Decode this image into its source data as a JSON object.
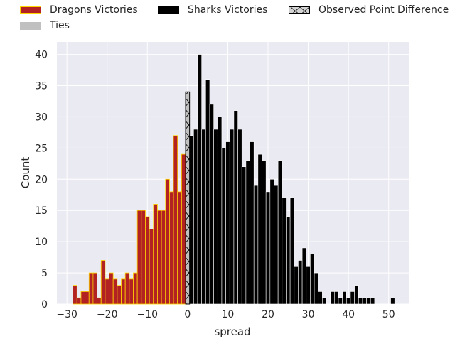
{
  "chart_data": {
    "type": "bar",
    "xlabel": "spread",
    "ylabel": "Count",
    "xlim": [
      -32.5,
      55
    ],
    "ylim": [
      0,
      42
    ],
    "xticks": [
      -30,
      -20,
      -10,
      0,
      10,
      20,
      30,
      40,
      50
    ],
    "yticks": [
      0,
      5,
      10,
      15,
      20,
      25,
      30,
      35,
      40
    ],
    "grid": true,
    "legend_placement": "top",
    "legend": {
      "dragons": "Dragons Victories",
      "sharks": "Sharks Victories",
      "observed": "Observed Point Difference",
      "ties": "Ties"
    },
    "colors": {
      "dragons_fill": "#B22222",
      "dragons_edge": "#FFD700",
      "sharks_fill": "#000000",
      "ties_fill": "#C0C0C0",
      "observed_fill": "#D3D3D3",
      "plot_bg": "#EAEAF2",
      "grid": "#FFFFFF"
    },
    "series": [
      {
        "name": "Dragons Victories",
        "x": [
          -28,
          -27,
          -26,
          -25,
          -24,
          -23,
          -22,
          -21,
          -20,
          -19,
          -18,
          -17,
          -16,
          -15,
          -14,
          -13,
          -12,
          -11,
          -10,
          -9,
          -8,
          -7,
          -6,
          -5,
          -4,
          -3,
          -2,
          -1
        ],
        "values": [
          3,
          1,
          2,
          2,
          5,
          5,
          1,
          7,
          4,
          5,
          4,
          3,
          4,
          5,
          4,
          5,
          15,
          15,
          14,
          12,
          16,
          15,
          15,
          20,
          18,
          27,
          18,
          24
        ]
      },
      {
        "name": "Sharks Victories",
        "x": [
          1,
          2,
          3,
          4,
          5,
          6,
          7,
          8,
          9,
          10,
          11,
          12,
          13,
          14,
          15,
          16,
          17,
          18,
          19,
          20,
          21,
          22,
          23,
          24,
          25,
          26,
          27,
          28,
          29,
          30,
          31,
          32,
          33,
          34,
          36,
          37,
          38,
          39,
          40,
          41,
          42,
          43,
          44,
          45,
          46,
          51
        ],
        "values": [
          27,
          28,
          40,
          28,
          36,
          32,
          28,
          30,
          25,
          26,
          28,
          31,
          28,
          22,
          23,
          26,
          19,
          24,
          23,
          18,
          20,
          19,
          23,
          17,
          14,
          17,
          6,
          7,
          9,
          6,
          8,
          5,
          2,
          1,
          2,
          2,
          1,
          2,
          1,
          2,
          3,
          1,
          1,
          1,
          1,
          1
        ]
      },
      {
        "name": "Ties",
        "x": [
          0
        ],
        "values": [
          34
        ]
      }
    ]
  }
}
